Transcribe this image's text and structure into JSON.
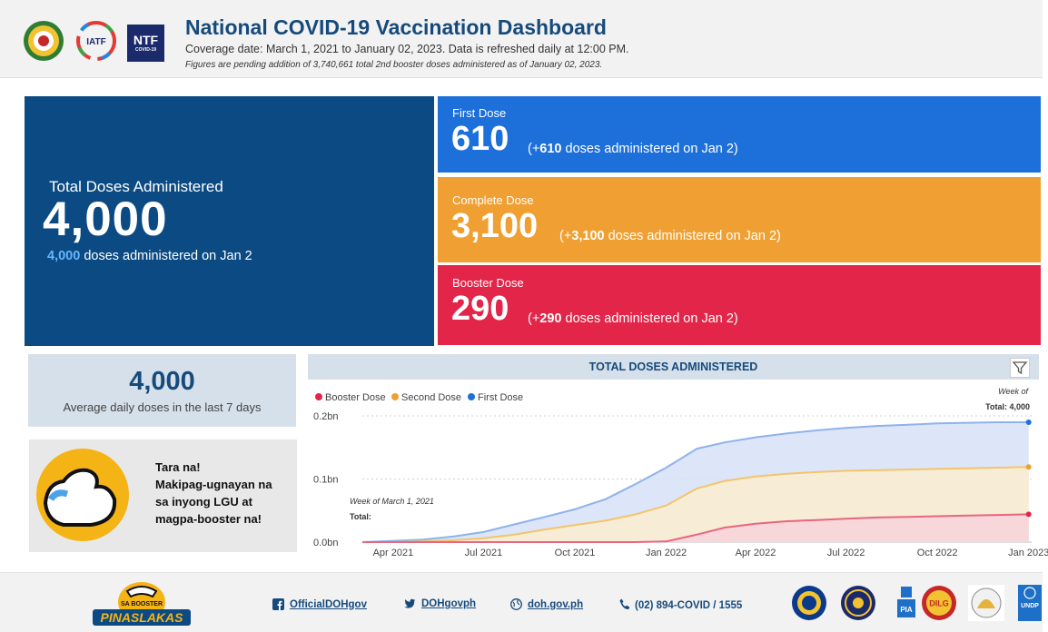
{
  "header": {
    "title": "National COVID-19 Vaccination Dashboard",
    "coverage": "Coverage date: March 1, 2021 to January 02, 2023. Data is refreshed daily at 12:00 PM.",
    "pending_note": "Figures are pending addition of 3,740,661 total 2nd booster doses administered as of January 02, 2023.",
    "ntf_logo": "NTF",
    "ntf_sub": "COVID-19",
    "iatf_logo": "IATF"
  },
  "total": {
    "label": "Total Doses Administered",
    "value": "4,000",
    "sub_bold": "4,000",
    "sub_text": "doses administered on Jan 2"
  },
  "first_dose": {
    "label": "First Dose",
    "value": "610",
    "sub_prefix": "(+",
    "sub_bold": "610",
    "sub_text": "doses administered on Jan 2)"
  },
  "complete_dose": {
    "label": "Complete Dose",
    "value": "3,100",
    "sub_prefix": "(+",
    "sub_bold": "3,100",
    "sub_text": "doses administered on Jan 2)"
  },
  "booster_dose": {
    "label": "Booster Dose",
    "value": "290",
    "sub_prefix": "(+",
    "sub_bold": "290",
    "sub_text": "doses administered on Jan 2)"
  },
  "average": {
    "value": "4,000",
    "label": "Average daily doses in the last 7 days"
  },
  "promo": {
    "line1": "Tara na!",
    "line2": "Makipag-ugnayan na",
    "line3": "sa inyong LGU at",
    "line4": "magpa-booster na!"
  },
  "chart_data": {
    "type": "area",
    "title": "TOTAL DOSES ADMINISTERED",
    "legend": [
      "Booster Dose",
      "Second Dose",
      "First Dose"
    ],
    "legend_placement": "top-left",
    "xlabel": "",
    "ylabel": "",
    "y_ticks": [
      "0.0bn",
      "0.1bn",
      "0.2bn"
    ],
    "ylim": [
      0,
      0.2
    ],
    "x_ticks": [
      "Apr 2021",
      "Jul 2021",
      "Oct 2021",
      "Jan 2022",
      "Apr 2022",
      "Jul 2022",
      "Oct 2022",
      "Jan 2023"
    ],
    "x": [
      "2021-03-01",
      "2021-04-01",
      "2021-05-01",
      "2021-06-01",
      "2021-07-01",
      "2021-08-01",
      "2021-09-01",
      "2021-10-01",
      "2021-11-01",
      "2021-12-01",
      "2022-01-01",
      "2022-02-01",
      "2022-03-01",
      "2022-04-01",
      "2022-05-01",
      "2022-06-01",
      "2022-07-01",
      "2022-08-01",
      "2022-09-01",
      "2022-10-01",
      "2022-11-01",
      "2022-12-01",
      "2023-01-01"
    ],
    "series": [
      {
        "name": "First Dose",
        "color": "#8fb2ea",
        "fill": "#d6e2f7",
        "point_color": "#1d6fd9",
        "values": [
          0.0,
          0.002,
          0.004,
          0.009,
          0.016,
          0.028,
          0.04,
          0.052,
          0.068,
          0.092,
          0.118,
          0.148,
          0.158,
          0.166,
          0.172,
          0.177,
          0.181,
          0.184,
          0.186,
          0.188,
          0.189,
          0.19,
          0.19
        ]
      },
      {
        "name": "Second Dose",
        "color": "#f4c46b",
        "fill": "#fbecd0",
        "point_color": "#f0a032",
        "values": [
          0.0,
          0.0,
          0.001,
          0.003,
          0.006,
          0.012,
          0.02,
          0.027,
          0.034,
          0.044,
          0.058,
          0.085,
          0.097,
          0.104,
          0.108,
          0.111,
          0.113,
          0.114,
          0.115,
          0.116,
          0.117,
          0.118,
          0.119
        ]
      },
      {
        "name": "Booster Dose",
        "color": "#e8667e",
        "fill": "#f8d4dc",
        "point_color": "#e22548",
        "values": [
          0,
          0,
          0,
          0,
          0,
          0,
          0,
          0,
          0,
          0,
          0.001,
          0.012,
          0.023,
          0.029,
          0.033,
          0.035,
          0.037,
          0.039,
          0.04,
          0.041,
          0.042,
          0.043,
          0.044
        ]
      }
    ],
    "annotations": {
      "left_week": "Week of March 1, 2021",
      "left_total": "Total:",
      "right_week": "Week of",
      "right_total": "Total: 4,000"
    }
  },
  "footer": {
    "facebook": "OfficialDOHgov",
    "twitter": "DOHgovph",
    "website": "doh.gov.ph",
    "phone": "(02) 894-COVID / 1555",
    "brand_top": "SA BOOSTER",
    "brand_bottom": "PINASLAKAS",
    "pia": "PIA",
    "dilg": "DILG",
    "undp": "UNDP"
  },
  "colors": {
    "navy": "#0b4a82",
    "first": "#1d6fd9",
    "complete": "#f0a032",
    "booster": "#e22548",
    "title": "#164a7c"
  }
}
